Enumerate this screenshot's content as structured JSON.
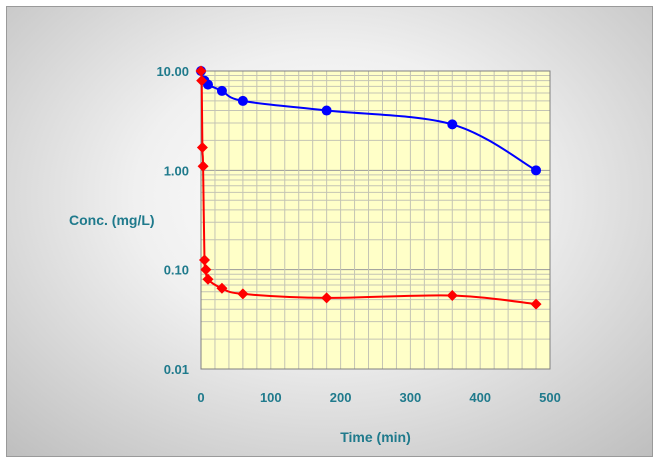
{
  "chart_data": {
    "type": "line",
    "title": "",
    "xlabel": "Time (min)",
    "ylabel": "Conc. (mg/L)",
    "x_scale": "linear",
    "y_scale": "log",
    "xlim": [
      0,
      500
    ],
    "ylim": [
      0.01,
      10
    ],
    "x_ticks": [
      "0",
      "100",
      "200",
      "300",
      "400",
      "500"
    ],
    "y_ticks": [
      "10.00",
      "1.00",
      "0.10",
      "0.01"
    ],
    "grid": true,
    "legend": "none",
    "plot_background": "#ffffc8",
    "series": [
      {
        "color": "#0000ff",
        "marker": "circle",
        "points": [
          [
            0,
            10.0
          ],
          [
            5,
            8.0
          ],
          [
            10,
            7.3
          ],
          [
            30,
            6.3
          ],
          [
            60,
            5.0
          ],
          [
            180,
            4.0
          ],
          [
            360,
            2.9
          ],
          [
            480,
            1.0
          ]
        ]
      },
      {
        "color": "#ff0000",
        "marker": "diamond",
        "points": [
          [
            0,
            10.0
          ],
          [
            1,
            8.0
          ],
          [
            2,
            1.7
          ],
          [
            3,
            1.1
          ],
          [
            5,
            0.125
          ],
          [
            7,
            0.1
          ],
          [
            10,
            0.08
          ],
          [
            30,
            0.065
          ],
          [
            60,
            0.057
          ],
          [
            180,
            0.052
          ],
          [
            360,
            0.055
          ],
          [
            480,
            0.045
          ]
        ]
      }
    ]
  }
}
